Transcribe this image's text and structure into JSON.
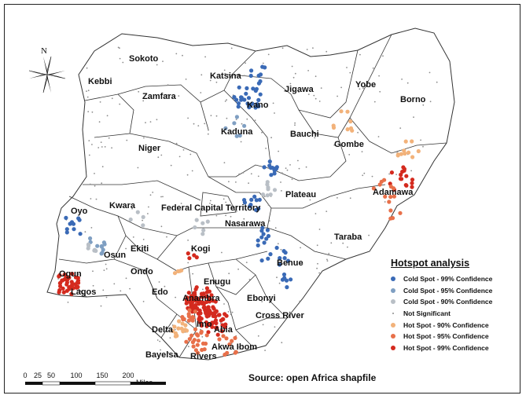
{
  "states": [
    {
      "name": "Sokoto"
    },
    {
      "name": "Kebbi"
    },
    {
      "name": "Zamfara"
    },
    {
      "name": "Katsina"
    },
    {
      "name": "Jigawa"
    },
    {
      "name": "Yobe"
    },
    {
      "name": "Borno"
    },
    {
      "name": "Kano"
    },
    {
      "name": "Gombe"
    },
    {
      "name": "Kaduna"
    },
    {
      "name": "Bauchi"
    },
    {
      "name": "Niger"
    },
    {
      "name": "Adamawa"
    },
    {
      "name": "Plateau"
    },
    {
      "name": "Kwara"
    },
    {
      "name": "Federal Capital Territory"
    },
    {
      "name": "Nasarawa"
    },
    {
      "name": "Oyo"
    },
    {
      "name": "Taraba"
    },
    {
      "name": "Osun"
    },
    {
      "name": "Ekiti"
    },
    {
      "name": "Kogi"
    },
    {
      "name": "Benue"
    },
    {
      "name": "Ogun"
    },
    {
      "name": "Ondo"
    },
    {
      "name": "Lagos"
    },
    {
      "name": "Enugu"
    },
    {
      "name": "Edo"
    },
    {
      "name": "Anambra"
    },
    {
      "name": "Ebonyi"
    },
    {
      "name": "Cross River"
    },
    {
      "name": "Imo"
    },
    {
      "name": "Delta"
    },
    {
      "name": "Abia"
    },
    {
      "name": "Akwa Ibom"
    },
    {
      "name": "Bayelsa"
    },
    {
      "name": "Rivers"
    }
  ],
  "legend": {
    "title": "Hotspot analysis",
    "items": [
      {
        "label": "Cold Spot - 99% Confidence",
        "color": "#3a6ab6"
      },
      {
        "label": "Cold Spot - 95% Confidence",
        "color": "#7f9fc2"
      },
      {
        "label": "Cold Spot - 90% Confidence",
        "color": "#b9bfc6"
      },
      {
        "label": "Not Significant",
        "color": "#8c8c8c"
      },
      {
        "label": "Hot Spot - 90% Confidence",
        "color": "#f2b27a"
      },
      {
        "label": "Hot Spot - 95% Confidence",
        "color": "#e8704a"
      },
      {
        "label": "Hot Spot - 99% Confidence",
        "color": "#d42a1e"
      }
    ]
  },
  "scale_bar": {
    "ticks": [
      "0",
      "25",
      "50",
      "100",
      "150",
      "200"
    ],
    "unit": "Miles"
  },
  "north_arrow": {
    "label": "N"
  },
  "source": "Source: open Africa shapfile"
}
